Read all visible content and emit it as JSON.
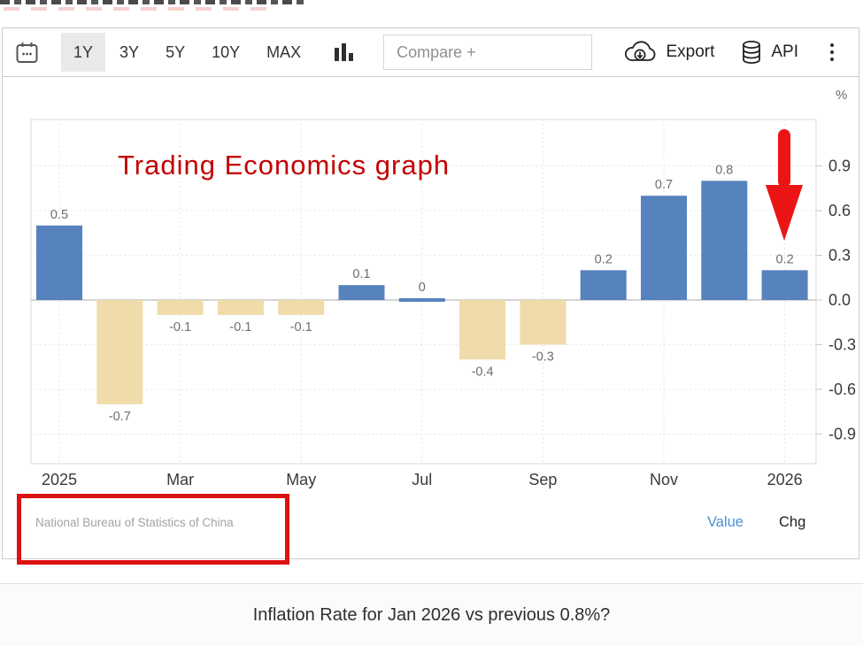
{
  "top_toolbar": {
    "ranges": [
      "1Y",
      "3Y",
      "5Y",
      "10Y",
      "MAX"
    ],
    "selected_range": "1Y",
    "compare_placeholder": "Compare +",
    "export_label": "Export",
    "api_label": "API"
  },
  "chart_data": {
    "type": "bar",
    "title": "",
    "y_axis_unit": "%",
    "values": [
      0.5,
      -0.7,
      -0.1,
      -0.1,
      -0.1,
      0.1,
      0,
      -0.4,
      -0.3,
      0.2,
      0.7,
      0.8,
      0.2
    ],
    "data_labels": [
      "0.5",
      "-0.7",
      "-0.1",
      "-0.1",
      "-0.1",
      "0.1",
      "0",
      "-0.4",
      "-0.3",
      "0.2",
      "0.7",
      "0.8",
      "0.2"
    ],
    "x_ticks": [
      "2025",
      "Mar",
      "May",
      "Jul",
      "Sep",
      "Nov",
      "2026"
    ],
    "x_tick_indices": [
      0,
      2,
      4,
      6,
      8,
      10,
      12
    ],
    "y_ticks": [
      0.9,
      0.6,
      0.3,
      0,
      -0.3,
      -0.6,
      -0.9
    ],
    "ylim": [
      -1.1,
      1.21
    ],
    "grid": true,
    "legend_position": "none",
    "positive_color": "#5682be",
    "negative_color": "#f0dcaa"
  },
  "annotations": {
    "overlay_text": "Trading Economics graph",
    "overlay_color": "#c40000",
    "arrow_color": "#eb1515",
    "box_color": "#dc1212"
  },
  "chart_footer": {
    "source": "National Bureau of Statistics of China",
    "value_label": "Value",
    "chg_label": "Chg"
  },
  "bottom_panel": {
    "question": "Inflation Rate for Jan 2026 vs previous 0.8%?"
  }
}
